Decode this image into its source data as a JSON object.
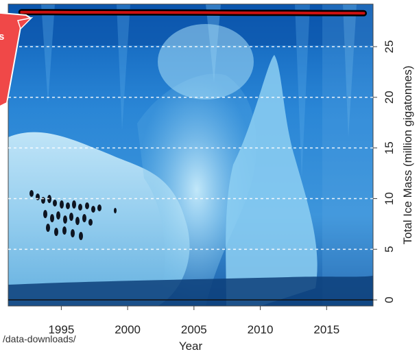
{
  "colors": {
    "series_line": "#cc1111",
    "series_outline": "#000000",
    "callout_fill": "#f04848",
    "callout_border": "#ffffff",
    "gridline": "#ffffff",
    "zero_line": "#111111",
    "photo_deep": "#0b3f8c",
    "photo_mid": "#2f7fd0",
    "photo_light": "#9fd6f3"
  },
  "background": {
    "description_icon": "iceberg-penguins-photo-icon"
  },
  "callout": {
    "visible_text": "s"
  },
  "source_note": {
    "text": "/data-downloads/"
  },
  "chart_data": {
    "type": "line",
    "title": "",
    "xlabel": "Year",
    "ylabel": "Total Ice Mass (million gigatonnes)",
    "xlim": [
      1991,
      2018.5
    ],
    "ylim": [
      -0.6,
      29.2
    ],
    "x_ticks": [
      1995,
      2000,
      2005,
      2010,
      2015
    ],
    "y_ticks": [
      0,
      5,
      10,
      15,
      20,
      25
    ],
    "grid": "horizontal dashed at y ticks",
    "y_axis_side": "right",
    "zero_line": true,
    "series": [
      {
        "x": [
          1992,
          1994,
          1996,
          1998,
          2000,
          2002,
          2004,
          2006,
          2008,
          2010,
          2012,
          2014,
          2016,
          2017.8
        ],
        "y": [
          28.4,
          28.4,
          28.39,
          28.39,
          28.38,
          28.38,
          28.37,
          28.36,
          28.35,
          28.34,
          28.33,
          28.32,
          28.31,
          28.3
        ]
      }
    ]
  }
}
